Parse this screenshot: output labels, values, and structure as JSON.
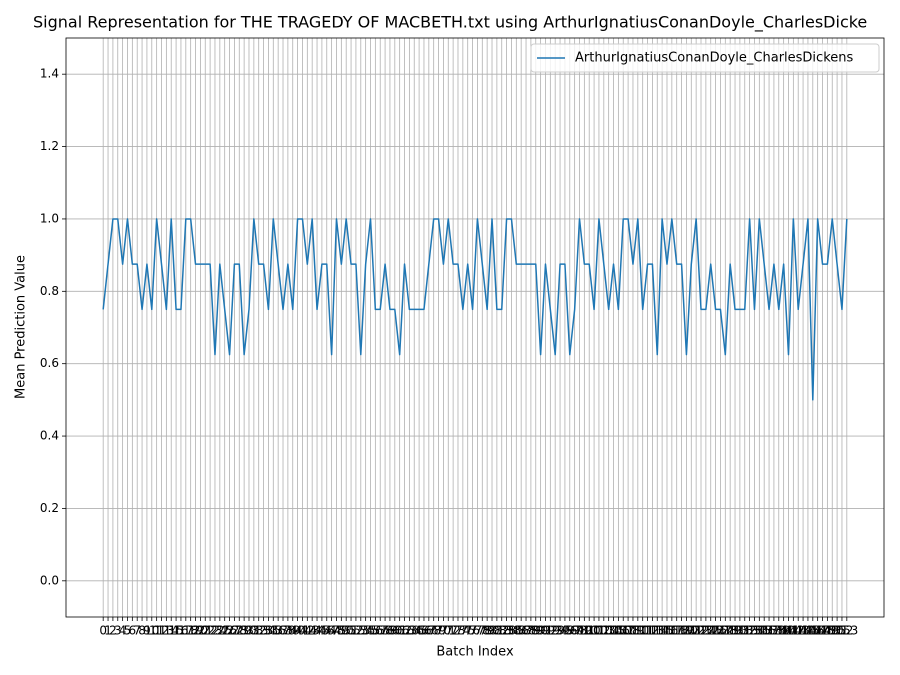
{
  "chart_data": {
    "type": "line",
    "title": "Signal Representation for THE TRAGEDY OF MACBETH.txt using ArthurIgnatiusConanDoyle_CharlesDicke",
    "xlabel": "Batch Index",
    "ylabel": "Mean Prediction Value",
    "x": [
      0,
      1,
      2,
      3,
      4,
      5,
      6,
      7,
      8,
      9,
      10,
      11,
      12,
      13,
      14,
      15,
      16,
      17,
      18,
      19,
      20,
      21,
      22,
      23,
      24,
      25,
      26,
      27,
      28,
      29,
      30,
      31,
      32,
      33,
      34,
      35,
      36,
      37,
      38,
      39,
      40,
      41,
      42,
      43,
      44,
      45,
      46,
      47,
      48,
      49,
      50,
      51,
      52,
      53,
      54,
      55,
      56,
      57,
      58,
      59,
      60,
      61,
      62,
      63,
      64,
      65,
      66,
      67,
      68,
      69,
      70,
      71,
      72,
      73,
      74,
      75,
      76,
      77,
      78,
      79,
      80,
      81,
      82,
      83,
      84,
      85,
      86,
      87,
      88,
      89,
      90,
      91,
      92,
      93,
      94,
      95,
      96,
      97,
      98,
      99,
      100,
      101,
      102,
      103,
      104,
      105,
      106,
      107,
      108,
      109,
      110,
      111,
      112,
      113,
      114,
      115,
      116,
      117,
      118,
      119,
      120,
      121,
      122,
      123,
      124,
      125,
      126,
      127,
      128,
      129,
      130,
      131,
      132,
      133,
      134,
      135,
      136,
      137,
      138,
      139,
      140,
      141,
      142,
      143,
      144,
      145,
      146,
      147,
      148,
      149,
      150,
      151,
      152,
      153
    ],
    "series": [
      {
        "name": "ArthurIgnatiusConanDoyle_CharlesDickens",
        "color": "#1f77b4",
        "values": [
          0.75,
          0.875,
          1,
          1,
          0.875,
          1,
          0.875,
          0.875,
          0.75,
          0.875,
          0.75,
          1,
          0.875,
          0.75,
          1,
          0.75,
          0.75,
          1,
          1,
          0.875,
          0.875,
          0.875,
          0.875,
          0.625,
          0.875,
          0.75,
          0.625,
          0.875,
          0.875,
          0.625,
          0.75,
          1,
          0.875,
          0.875,
          0.75,
          1,
          0.875,
          0.75,
          0.875,
          0.75,
          1,
          1,
          0.875,
          1,
          0.75,
          0.875,
          0.875,
          0.625,
          1,
          0.875,
          1,
          0.875,
          0.875,
          0.625,
          0.875,
          1,
          0.75,
          0.75,
          0.875,
          0.75,
          0.75,
          0.625,
          0.875,
          0.75,
          0.75,
          0.75,
          0.75,
          0.875,
          1,
          1,
          0.875,
          1,
          0.875,
          0.875,
          0.75,
          0.875,
          0.75,
          1,
          0.875,
          0.75,
          1,
          0.75,
          0.75,
          1,
          1,
          0.875,
          0.875,
          0.875,
          0.875,
          0.875,
          0.625,
          0.875,
          0.75,
          0.625,
          0.875,
          0.875,
          0.625,
          0.75,
          1,
          0.875,
          0.875,
          0.75,
          1,
          0.875,
          0.75,
          0.875,
          0.75,
          1,
          1,
          0.875,
          1,
          0.75,
          0.875,
          0.875,
          0.625,
          1,
          0.875,
          1,
          0.875,
          0.875,
          0.625,
          0.875,
          1,
          0.75,
          0.75,
          0.875,
          0.75,
          0.75,
          0.625,
          0.875,
          0.75,
          0.75,
          0.75,
          1,
          0.75,
          1,
          0.875,
          0.75,
          0.875,
          0.75,
          0.875,
          0.625,
          1,
          0.75,
          0.875,
          1,
          0.5,
          1,
          0.875,
          0.875,
          1,
          0.875,
          0.75,
          1
        ]
      }
    ],
    "xlim": [
      -7.65,
      160.65
    ],
    "xticks": [
      0,
      1,
      2,
      3,
      4,
      5,
      6,
      7,
      8,
      9,
      10,
      11,
      12,
      13,
      14,
      15,
      16,
      17,
      18,
      19,
      20,
      21,
      22,
      23,
      24,
      25,
      26,
      27,
      28,
      29,
      30,
      31,
      32,
      33,
      34,
      35,
      36,
      37,
      38,
      39,
      40,
      41,
      42,
      43,
      44,
      45,
      46,
      47,
      48,
      49,
      50,
      51,
      52,
      53,
      54,
      55,
      56,
      57,
      58,
      59,
      60,
      61,
      62,
      63,
      64,
      65,
      66,
      67,
      68,
      69,
      70,
      71,
      72,
      73,
      74,
      75,
      76,
      77,
      78,
      79,
      80,
      81,
      82,
      83,
      84,
      85,
      86,
      87,
      88,
      89,
      90,
      91,
      92,
      93,
      94,
      95,
      96,
      97,
      98,
      99,
      100,
      101,
      102,
      103,
      104,
      105,
      106,
      107,
      108,
      109,
      110,
      111,
      112,
      113,
      114,
      115,
      116,
      117,
      118,
      119,
      120,
      121,
      122,
      123,
      124,
      125,
      126,
      127,
      128,
      129,
      130,
      131,
      132,
      133,
      134,
      135,
      136,
      137,
      138,
      139,
      140,
      141,
      142,
      143,
      144,
      145,
      146,
      147,
      148,
      149,
      150,
      151,
      152,
      153
    ],
    "ylim": [
      -0.1,
      1.5
    ],
    "yticks": [
      {
        "value": 0,
        "label": "0.0"
      },
      0.2,
      0.4,
      0.6,
      0.8,
      {
        "value": 1,
        "label": "1.0"
      },
      1.2,
      1.4
    ],
    "grid": true,
    "legend": "upper right"
  }
}
